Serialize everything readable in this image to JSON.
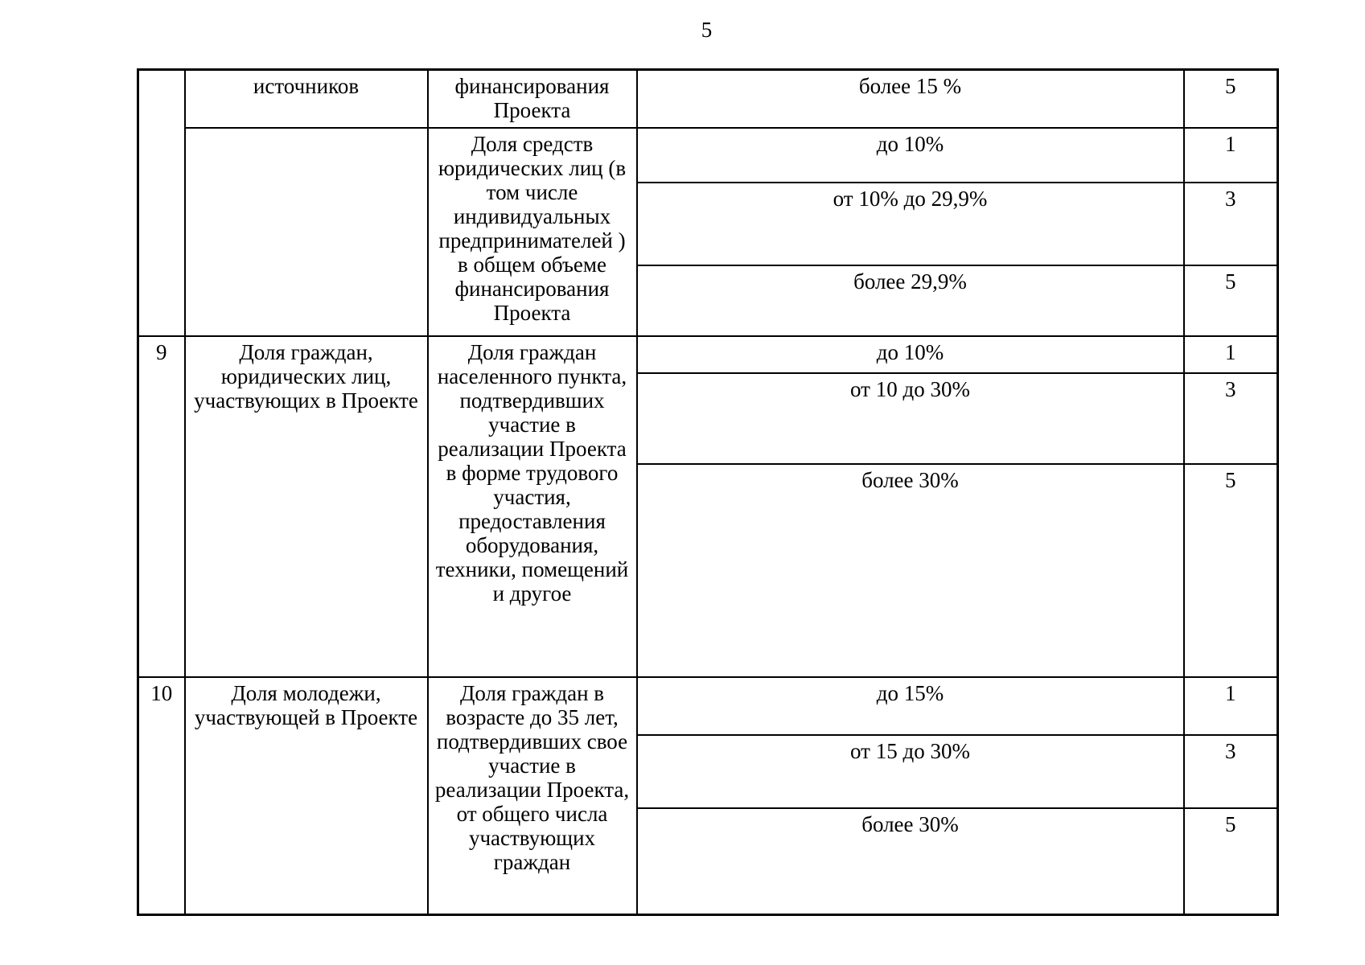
{
  "page_number": "5",
  "colors": {
    "text": "#000000",
    "border": "#000000",
    "background": "#ffffff"
  },
  "table": {
    "row8_continuation": {
      "number": "",
      "criterion_tail": "источников",
      "sub1": {
        "description_tail": "финансирования Проекта",
        "range": "более 15 %",
        "points": "5"
      },
      "sub2": {
        "criterion": "",
        "description": "Доля средств юридических лиц (в том числе индивидуальных предпринимателей ) в общем объеме финансирования Проекта",
        "ranges": [
          {
            "range": "до 10%",
            "points": "1"
          },
          {
            "range": "от 10% до 29,9%",
            "points": "3"
          },
          {
            "range": "более 29,9%",
            "points": "5"
          }
        ]
      }
    },
    "row9": {
      "number": "9",
      "criterion": "Доля граждан, юридических лиц, участвующих в Проекте",
      "description": "Доля граждан населенного пункта, подтвердивших участие в реализации Проекта в форме трудового участия, предоставления оборудования, техники, помещений и другое",
      "ranges": [
        {
          "range": "до 10%",
          "points": "1"
        },
        {
          "range": "от 10 до 30%",
          "points": "3"
        },
        {
          "range": "более 30%",
          "points": "5"
        }
      ]
    },
    "row10": {
      "number": "10",
      "criterion": "Доля молодежи, участвующей в Проекте",
      "description": "Доля граждан в возрасте до 35 лет, подтвердивших свое участие в реализации Проекта, от общего числа участвующих граждан",
      "ranges": [
        {
          "range": "до 15%",
          "points": "1"
        },
        {
          "range": "от 15 до 30%",
          "points": "3"
        },
        {
          "range": "более 30%",
          "points": "5"
        }
      ]
    }
  }
}
